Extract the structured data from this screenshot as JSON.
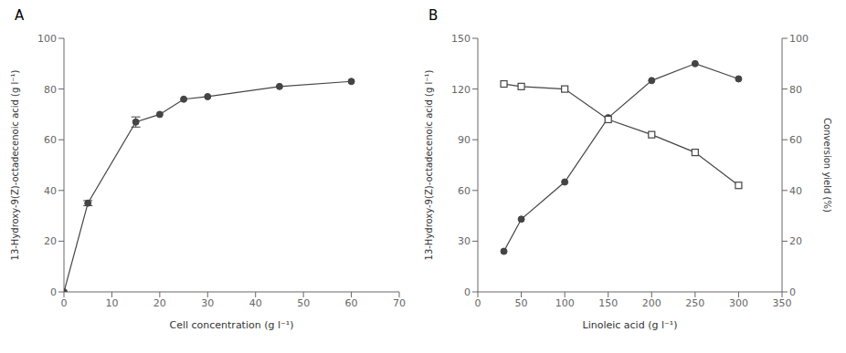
{
  "chart_data": [
    {
      "type": "line",
      "title": "A",
      "x": [
        0,
        5,
        15,
        20,
        25,
        30,
        45,
        60
      ],
      "values": [
        0,
        35,
        67,
        70,
        76,
        77,
        81,
        83
      ],
      "yerr": [
        0,
        1.0,
        2.0,
        0,
        0,
        0,
        0,
        0
      ],
      "color": "#444444",
      "marker": "circle",
      "xlabel": "Cell concentration (g l⁻¹)",
      "ylabel": "13-Hydroxy-9(Z)-octadecenoic acid (g l⁻¹)",
      "xlim": [
        0,
        70
      ],
      "ylim": [
        0,
        100
      ],
      "xticks": [
        0,
        10,
        20,
        30,
        40,
        50,
        60,
        70
      ],
      "yticks": [
        0,
        20,
        40,
        60,
        80,
        100
      ],
      "grid": false
    },
    {
      "type": "line",
      "title": "B",
      "x": [
        30,
        50,
        100,
        150,
        200,
        250,
        300
      ],
      "series": [
        {
          "color": "#444444",
          "marker": "circle",
          "values": [
            24,
            43,
            65,
            103,
            125,
            135,
            126
          ]
        },
        {
          "color": "#444444",
          "marker": "square",
          "values": [
            82,
            81,
            80,
            68,
            62,
            55,
            42
          ],
          "axis": "y2"
        }
      ],
      "xlabel": "Linoleic acid (g l⁻¹)",
      "ylabel": "13-Hydroxy-9(Z)-octadecenoic acid (g l⁻¹)",
      "y2label": "Conversion yield (%)",
      "xlim": [
        0,
        350
      ],
      "ylim": [
        0,
        150
      ],
      "xticks": [
        0,
        50,
        100,
        150,
        200,
        250,
        300,
        350
      ],
      "yticks": [
        0,
        30,
        60,
        90,
        120,
        150
      ],
      "y2lim": [
        0,
        100
      ],
      "y2ticks": [
        0,
        20,
        40,
        60,
        80,
        100
      ],
      "grid": false
    }
  ]
}
